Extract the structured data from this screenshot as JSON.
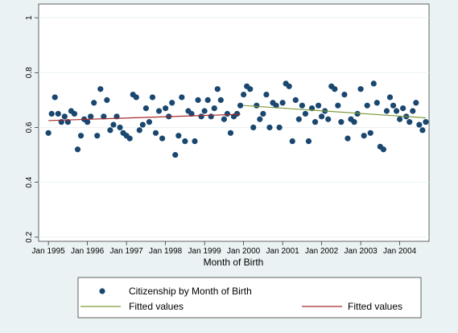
{
  "chart_data": {
    "type": "scatter",
    "x_label": "Month of Birth",
    "xlim": [
      "Oct 1994",
      "Oct 2004"
    ],
    "xticks": [
      "Jan 1995",
      "Jan 1996",
      "Jan 1997",
      "Jan 1998",
      "Jan 1999",
      "Jan 2000",
      "Jan 2001",
      "Jan 2002",
      "Jan 2003",
      "Jan 2004"
    ],
    "ylim": [
      0.185,
      1.05
    ],
    "yticks": [
      0.2,
      0.4,
      0.6,
      0.8,
      1
    ],
    "grid": true,
    "series": [
      {
        "name": "Citizenship by Month of Birth",
        "type": "scatter",
        "color": "#1a476f",
        "x": [
          "Jan 1995",
          "Feb 1995",
          "Mar 1995",
          "Apr 1995",
          "May 1995",
          "Jun 1995",
          "Jul 1995",
          "Aug 1995",
          "Sep 1995",
          "Oct 1995",
          "Nov 1995",
          "Dec 1995",
          "Jan 1996",
          "Feb 1996",
          "Mar 1996",
          "Apr 1996",
          "May 1996",
          "Jun 1996",
          "Jul 1996",
          "Aug 1996",
          "Sep 1996",
          "Oct 1996",
          "Nov 1996",
          "Dec 1996",
          "Jan 1997",
          "Feb 1997",
          "Mar 1997",
          "Apr 1997",
          "May 1997",
          "Jun 1997",
          "Jul 1997",
          "Aug 1997",
          "Sep 1997",
          "Oct 1997",
          "Nov 1997",
          "Dec 1997",
          "Jan 1998",
          "Feb 1998",
          "Mar 1998",
          "Apr 1998",
          "May 1998",
          "Jun 1998",
          "Jul 1998",
          "Aug 1998",
          "Sep 1998",
          "Oct 1998",
          "Nov 1998",
          "Dec 1998",
          "Jan 1999",
          "Feb 1999",
          "Mar 1999",
          "Apr 1999",
          "May 1999",
          "Jun 1999",
          "Jul 1999",
          "Aug 1999",
          "Sep 1999",
          "Oct 1999",
          "Nov 1999",
          "Dec 1999",
          "Jan 2000",
          "Feb 2000",
          "Mar 2000",
          "Apr 2000",
          "May 2000",
          "Jun 2000",
          "Jul 2000",
          "Aug 2000",
          "Sep 2000",
          "Oct 2000",
          "Nov 2000",
          "Dec 2000",
          "Jan 2001",
          "Feb 2001",
          "Mar 2001",
          "Apr 2001",
          "May 2001",
          "Jun 2001",
          "Jul 2001",
          "Aug 2001",
          "Sep 2001",
          "Oct 2001",
          "Nov 2001",
          "Dec 2001",
          "Jan 2002",
          "Feb 2002",
          "Mar 2002",
          "Apr 2002",
          "May 2002",
          "Jun 2002",
          "Jul 2002",
          "Aug 2002",
          "Sep 2002",
          "Oct 2002",
          "Nov 2002",
          "Dec 2002",
          "Jan 2003",
          "Feb 2003",
          "Mar 2003",
          "Apr 2003",
          "May 2003",
          "Jun 2003",
          "Jul 2003",
          "Aug 2003",
          "Sep 2003",
          "Oct 2003",
          "Nov 2003",
          "Dec 2003",
          "Jan 2004",
          "Feb 2004",
          "Mar 2004",
          "Apr 2004",
          "May 2004",
          "Jun 2004",
          "Jul 2004",
          "Aug 2004",
          "Sep 2004"
        ],
        "values": [
          0.58,
          0.65,
          0.71,
          0.65,
          0.62,
          0.64,
          0.62,
          0.66,
          0.65,
          0.52,
          0.57,
          0.63,
          0.62,
          0.64,
          0.69,
          0.57,
          0.74,
          0.64,
          0.7,
          0.59,
          0.61,
          0.64,
          0.6,
          0.58,
          0.57,
          0.56,
          0.72,
          0.71,
          0.59,
          0.61,
          0.67,
          0.62,
          0.71,
          0.58,
          0.66,
          0.56,
          0.67,
          0.64,
          0.69,
          0.5,
          0.57,
          0.71,
          0.55,
          0.66,
          0.65,
          0.55,
          0.7,
          0.64,
          0.66,
          0.7,
          0.64,
          0.67,
          0.74,
          0.7,
          0.63,
          0.65,
          0.58,
          0.64,
          0.65,
          0.68,
          0.72,
          0.75,
          0.74,
          0.6,
          0.68,
          0.63,
          0.65,
          0.72,
          0.6,
          0.69,
          0.68,
          0.6,
          0.69,
          0.76,
          0.75,
          0.55,
          0.7,
          0.63,
          0.68,
          0.65,
          0.55,
          0.67,
          0.62,
          0.68,
          0.64,
          0.66,
          0.63,
          0.75,
          0.74,
          0.68,
          0.62,
          0.72,
          0.56,
          0.63,
          0.62,
          0.65,
          0.74,
          0.57,
          0.68,
          0.58,
          0.76,
          0.69,
          0.53,
          0.52,
          0.66,
          0.71,
          0.68,
          0.66,
          0.63,
          0.67,
          0.64,
          0.62,
          0.66,
          0.69,
          0.61,
          0.59,
          0.62
        ]
      },
      {
        "name": "Fitted values",
        "type": "line",
        "color": "#7e9a3c",
        "x": [
          "Jan 2000",
          "Sep 2004"
        ],
        "values": [
          0.68,
          0.635
        ]
      },
      {
        "name": "Fitted values",
        "type": "line",
        "color": "#a52a2a",
        "x": [
          "Jan 1995",
          "Dec 1999"
        ],
        "values": [
          0.625,
          0.648
        ]
      }
    ]
  }
}
